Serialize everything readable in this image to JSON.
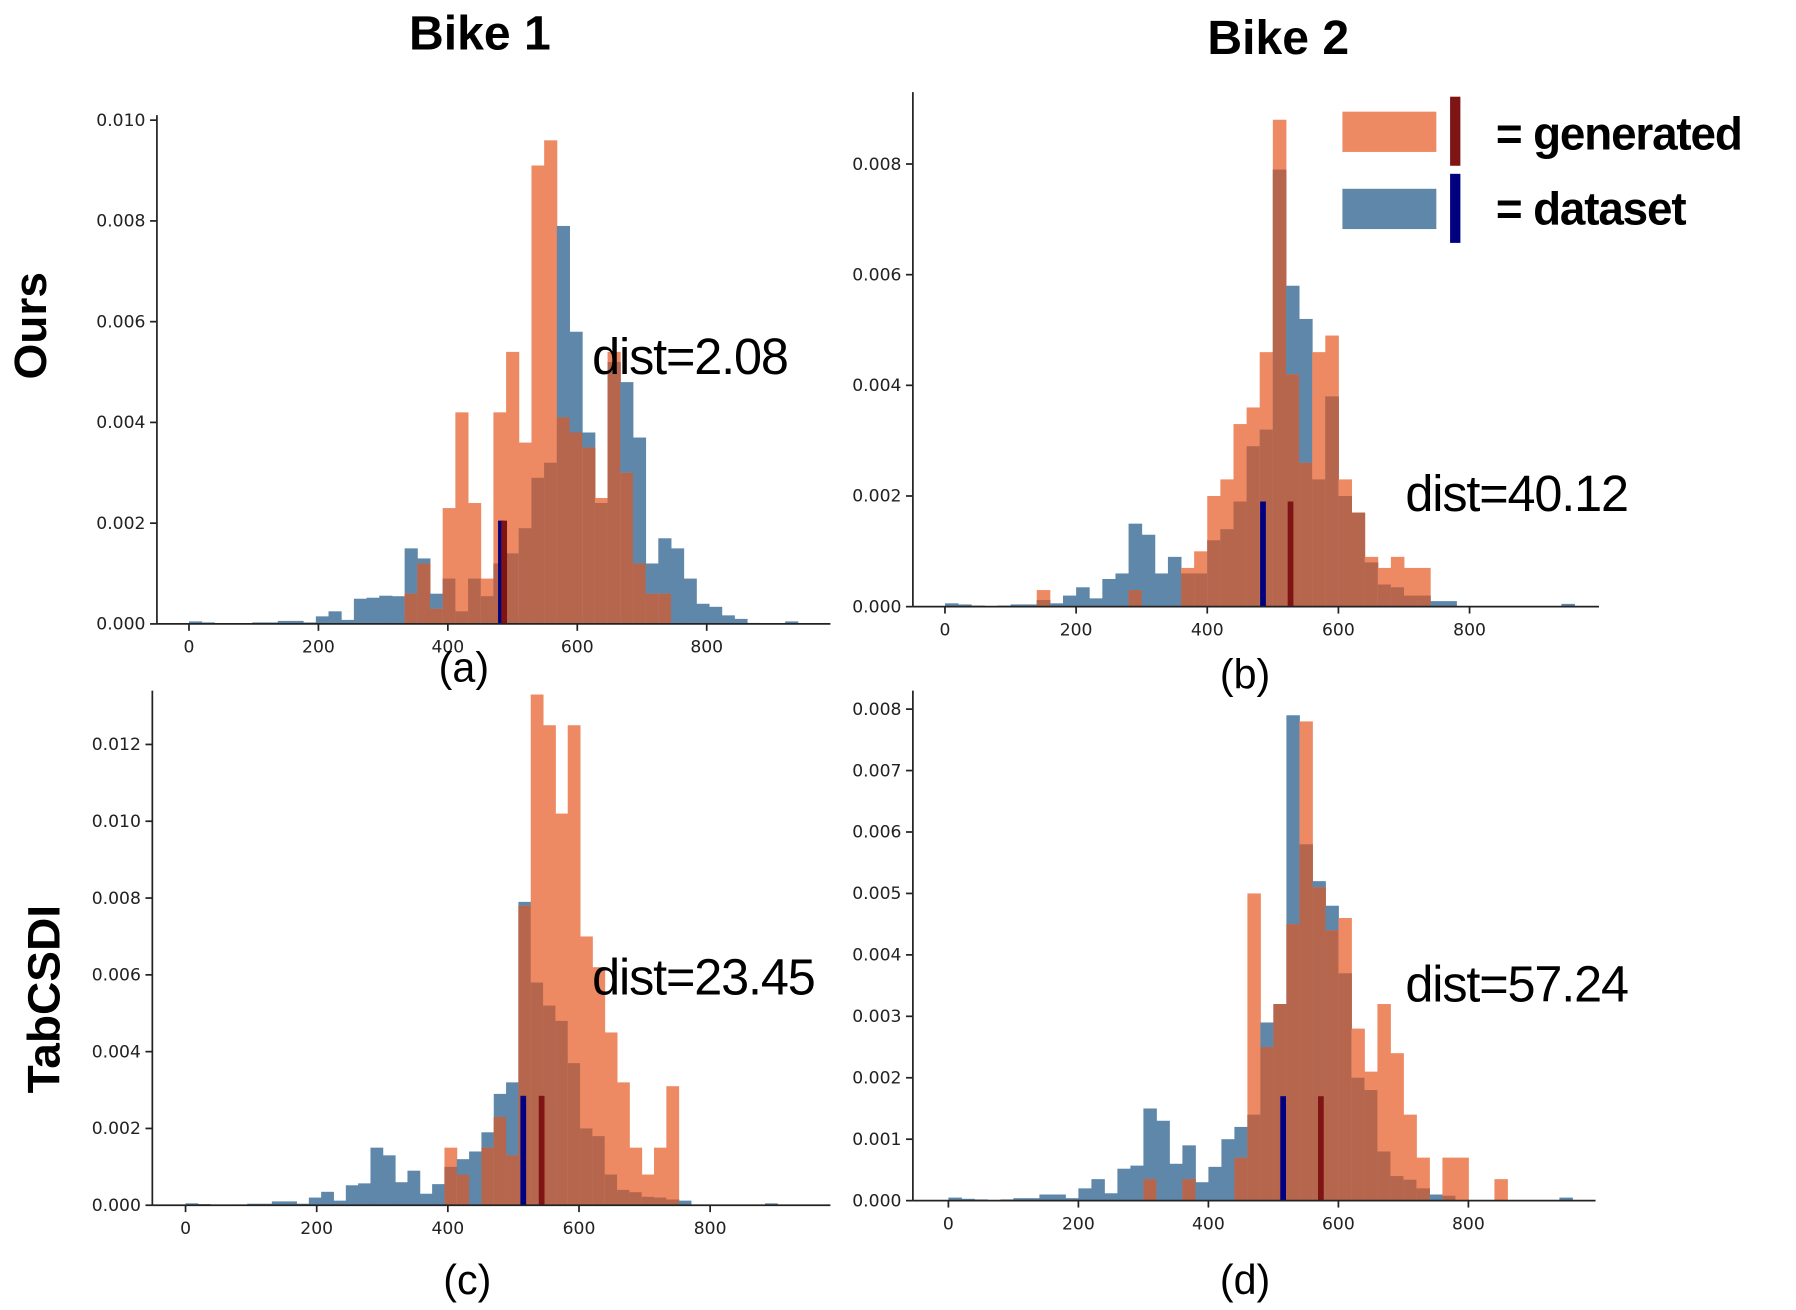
{
  "colors": {
    "generated_fill": "#ee8a63",
    "dataset_fill": "#5f87aa",
    "overlap_fill": "#b5664d",
    "generated_mean": "#7f1414",
    "dataset_mean": "#000080"
  },
  "column_titles": [
    "Bike 1",
    "Bike 2"
  ],
  "row_labels": [
    "Ours",
    "TabCSDI"
  ],
  "legend": {
    "items": [
      {
        "label": "= generated",
        "series": "generated"
      },
      {
        "label": "= dataset",
        "series": "dataset"
      }
    ]
  },
  "chart_data": [
    {
      "type": "bar",
      "panel": "(a)",
      "title": "",
      "column": "Bike 1",
      "row": "Ours",
      "annotation": "dist=2.08",
      "xlabel": "",
      "ylabel": "",
      "xlim": [
        -50,
        990
      ],
      "ylim": [
        0,
        0.0101
      ],
      "xticks": [
        0,
        200,
        400,
        600,
        800
      ],
      "yticks": [
        0.0,
        0.002,
        0.004,
        0.006,
        0.008,
        0.01
      ],
      "ytick_labels": [
        "0.000",
        "0.002",
        "0.004",
        "0.006",
        "0.008",
        "0.010"
      ],
      "bin_start": 0,
      "bin_width": 19.6,
      "series": [
        {
          "name": "dataset",
          "values": [
            5e-05,
            3e-05,
            1e-05,
            0.0,
            1e-05,
            3e-05,
            3e-05,
            6e-05,
            6e-05,
            3e-05,
            0.00015,
            0.00025,
            8e-05,
            0.0005,
            0.00052,
            0.00056,
            0.00055,
            0.0015,
            0.0013,
            0.0006,
            0.0009,
            0.00025,
            0.0009,
            0.00055,
            0.0012,
            0.0014,
            0.0019,
            0.0029,
            0.0032,
            0.0079,
            0.0058,
            0.0038,
            0.0024,
            0.0052,
            0.0048,
            0.0037,
            0.0012,
            0.0017,
            0.0015,
            0.0009,
            0.0004,
            0.00034,
            0.00017,
            0.0001,
            2e-05,
            0.0,
            1e-05,
            5e-05
          ]
        },
        {
          "name": "generated",
          "values": [
            0,
            0,
            0,
            0,
            0,
            0,
            0,
            0,
            0,
            0,
            0,
            0,
            0,
            0,
            0,
            0,
            0,
            0.0006,
            0.0012,
            0.0003,
            0.0023,
            0.0042,
            0.0024,
            0.0009,
            0.0042,
            0.0054,
            0.0036,
            0.0091,
            0.0096,
            0.0041,
            0.0038,
            0.0035,
            0.0025,
            0.0054,
            0.003,
            0.0012,
            0.0006,
            0.0006,
            0,
            0,
            0,
            0,
            0,
            0,
            0,
            0,
            0,
            0
          ]
        }
      ],
      "means": {
        "dataset": 482,
        "generated": 487
      },
      "mean_line_height": 0.00205
    },
    {
      "type": "bar",
      "panel": "(b)",
      "title": "",
      "column": "Bike 2",
      "row": "Ours",
      "annotation": "dist=40.12",
      "xlabel": "",
      "ylabel": "",
      "xlim": [
        -50,
        990
      ],
      "ylim": [
        0,
        0.0093
      ],
      "xticks": [
        0,
        200,
        400,
        600,
        800
      ],
      "yticks": [
        0.0,
        0.002,
        0.004,
        0.006,
        0.008
      ],
      "ytick_labels": [
        "0.000",
        "0.002",
        "0.004",
        "0.006",
        "0.008"
      ],
      "bin_start": 0,
      "bin_width": 20,
      "series": [
        {
          "name": "dataset",
          "values": [
            6e-05,
            4e-05,
            2e-05,
            0.0,
            2e-05,
            4e-05,
            4e-05,
            0.00012,
            6e-05,
            0.0002,
            0.00035,
            0.00015,
            0.0005,
            0.0006,
            0.0015,
            0.0013,
            0.0006,
            0.0009,
            0.0006,
            0.0006,
            0.0012,
            0.0014,
            0.0019,
            0.0029,
            0.0032,
            0.0079,
            0.0058,
            0.0052,
            0.0023,
            0.0038,
            0.002,
            0.0017,
            0.0008,
            0.0004,
            0.00035,
            0.0002,
            0.0002,
            0.0001,
            0.0001,
            0.0,
            0.0,
            0.0,
            0.0,
            0.0,
            0.0,
            0.0,
            1e-05,
            5e-05
          ]
        },
        {
          "name": "generated",
          "values": [
            0,
            0,
            0,
            0,
            0,
            0,
            0,
            0.0003,
            0,
            0,
            0,
            0,
            0,
            0,
            0.0003,
            0,
            0,
            0,
            0.0007,
            0.001,
            0.002,
            0.0023,
            0.0033,
            0.0036,
            0.0046,
            0.0088,
            0.0042,
            0.0026,
            0.0046,
            0.0049,
            0.0023,
            0.0017,
            0.0009,
            0.0007,
            0.0009,
            0.0007,
            0.0007,
            0,
            0,
            0,
            0,
            0,
            0,
            0,
            0,
            0,
            0,
            0
          ]
        }
      ],
      "means": {
        "dataset": 485,
        "generated": 527
      },
      "mean_line_height": 0.0019
    },
    {
      "type": "bar",
      "panel": "(c)",
      "title": "",
      "column": "Bike 1",
      "row": "TabCSDI",
      "annotation": "dist=23.45",
      "xlabel": "",
      "ylabel": "",
      "xlim": [
        -50,
        990
      ],
      "ylim": [
        0,
        0.0134
      ],
      "xticks": [
        0,
        200,
        400,
        600,
        800
      ],
      "yticks": [
        0.0,
        0.002,
        0.004,
        0.006,
        0.008,
        0.01,
        0.012
      ],
      "ytick_labels": [
        "0.000",
        "0.002",
        "0.004",
        "0.006",
        "0.008",
        "0.010",
        "0.012"
      ],
      "bin_start": 0,
      "bin_width": 18.8,
      "series": [
        {
          "name": "dataset",
          "values": [
            5e-05,
            3e-05,
            1e-05,
            0.0,
            2e-05,
            4e-05,
            4e-05,
            0.0001,
            0.0001,
            4e-05,
            0.0002,
            0.00035,
            0.00012,
            0.00052,
            0.00057,
            0.0015,
            0.0013,
            0.0006,
            0.0009,
            0.0003,
            0.00055,
            0.001,
            0.0012,
            0.0014,
            0.0019,
            0.0029,
            0.0032,
            0.0079,
            0.0058,
            0.0052,
            0.0048,
            0.0037,
            0.002,
            0.0018,
            0.0008,
            0.0004,
            0.00034,
            0.00022,
            0.0002,
            0.00015,
            0.00012,
            2e-05,
            0.0,
            0.0,
            0.0,
            0.0,
            0.0,
            5e-05
          ]
        },
        {
          "name": "generated",
          "values": [
            0,
            0,
            0,
            0,
            0,
            0,
            0,
            0,
            0,
            0,
            0,
            0,
            0,
            0,
            0,
            0,
            0,
            0,
            0,
            0,
            0,
            0.0015,
            0.0008,
            0,
            0.0015,
            0.0023,
            0.0013,
            0.0078,
            0.0133,
            0.0125,
            0.0102,
            0.0125,
            0.007,
            0.0062,
            0.0045,
            0.0032,
            0.0015,
            0.0008,
            0.0015,
            0.0031,
            0,
            0,
            0,
            0,
            0,
            0,
            0,
            0
          ]
        }
      ],
      "means": {
        "dataset": 515,
        "generated": 543
      },
      "mean_line_height": 0.00285
    },
    {
      "type": "bar",
      "panel": "(d)",
      "title": "",
      "column": "Bike 2",
      "row": "TabCSDI",
      "annotation": "dist=57.24",
      "xlabel": "",
      "ylabel": "",
      "xlim": [
        -50,
        990
      ],
      "ylim": [
        0,
        0.0083
      ],
      "xticks": [
        0,
        200,
        400,
        600,
        800
      ],
      "yticks": [
        0.0,
        0.001,
        0.002,
        0.003,
        0.004,
        0.005,
        0.006,
        0.007,
        0.008
      ],
      "ytick_labels": [
        "0.000",
        "0.001",
        "0.002",
        "0.003",
        "0.004",
        "0.005",
        "0.006",
        "0.007",
        "0.008"
      ],
      "bin_start": 0,
      "bin_width": 20,
      "series": [
        {
          "name": "dataset",
          "values": [
            5e-05,
            3e-05,
            2e-05,
            0.0,
            2e-05,
            4e-05,
            4e-05,
            0.0001,
            0.0001,
            4e-05,
            0.0002,
            0.00035,
            0.00012,
            0.00052,
            0.00057,
            0.0015,
            0.0013,
            0.0006,
            0.0009,
            0.0003,
            0.00055,
            0.001,
            0.0012,
            0.0014,
            0.0029,
            0.0032,
            0.0079,
            0.0058,
            0.0052,
            0.0048,
            0.0037,
            0.002,
            0.0018,
            0.0008,
            0.0004,
            0.00034,
            0.0002,
            0.0001,
            8e-05,
            0.0,
            0.0,
            0.0,
            0.0,
            0.0,
            0.0,
            0.0,
            1e-05,
            5e-05
          ]
        },
        {
          "name": "generated",
          "values": [
            0,
            0,
            0,
            0,
            0,
            0,
            0,
            0,
            0,
            0,
            0,
            0,
            0,
            0,
            0,
            0.00035,
            0,
            0,
            0.00035,
            0,
            0,
            0,
            0.0007,
            0.005,
            0.0025,
            0.0032,
            0.0045,
            0.0078,
            0.0051,
            0.0044,
            0.0046,
            0.0028,
            0.0021,
            0.0032,
            0.0024,
            0.0014,
            0.0007,
            0,
            0.0007,
            0.0007,
            0,
            0,
            0.00035,
            0,
            0,
            0,
            0,
            0
          ]
        }
      ],
      "means": {
        "dataset": 515,
        "generated": 573
      },
      "mean_line_height": 0.0017
    }
  ]
}
